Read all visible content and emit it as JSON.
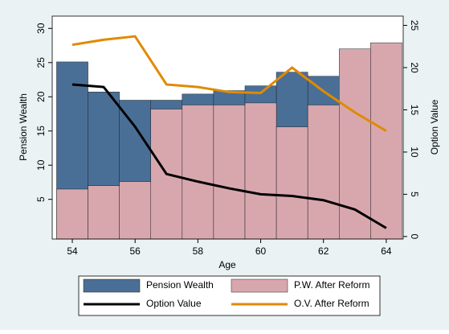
{
  "chart_data": {
    "type": "combo",
    "x_label": "Age",
    "y_label": "Pension Wealth",
    "y2_label": "Option Value",
    "x": [
      54,
      55,
      56,
      57,
      58,
      59,
      60,
      61,
      62,
      63,
      64
    ],
    "series": [
      {
        "name": "Pension Wealth",
        "type": "bar",
        "color": "#4a6f97",
        "values": [
          25.1,
          20.7,
          19.5,
          19.5,
          20.4,
          20.9,
          21.6,
          23.6,
          23.0,
          null,
          null
        ]
      },
      {
        "name": "P.W. After Reform",
        "type": "bar",
        "color": "#d8a7ae",
        "values": [
          6.5,
          7.0,
          7.6,
          18.2,
          18.8,
          18.8,
          19.1,
          15.6,
          18.8,
          27.0,
          27.9
        ]
      },
      {
        "name": "Option Value",
        "type": "line",
        "axis": "y2",
        "color": "#000000",
        "values": [
          18.0,
          17.7,
          13.0,
          7.4,
          6.5,
          5.7,
          5.0,
          4.8,
          4.3,
          3.2,
          1.0
        ]
      },
      {
        "name": "O.V. After Reform",
        "type": "line",
        "axis": "y2",
        "color": "#e08a00",
        "values": [
          22.7,
          23.3,
          23.7,
          18.0,
          17.7,
          17.1,
          17.0,
          20.0,
          17.2,
          14.7,
          12.5
        ]
      }
    ],
    "xlim": [
      53.36,
      64.54
    ],
    "xticks": [
      54,
      56,
      58,
      60,
      62,
      64
    ],
    "ylim": [
      -0.8,
      31.8
    ],
    "yticks": [
      5,
      10,
      15,
      20,
      25,
      30
    ],
    "y2lim": [
      -0.3,
      26.1
    ],
    "y2ticks": [
      0,
      5,
      10,
      15,
      20,
      25
    ],
    "legend": "bottom"
  }
}
